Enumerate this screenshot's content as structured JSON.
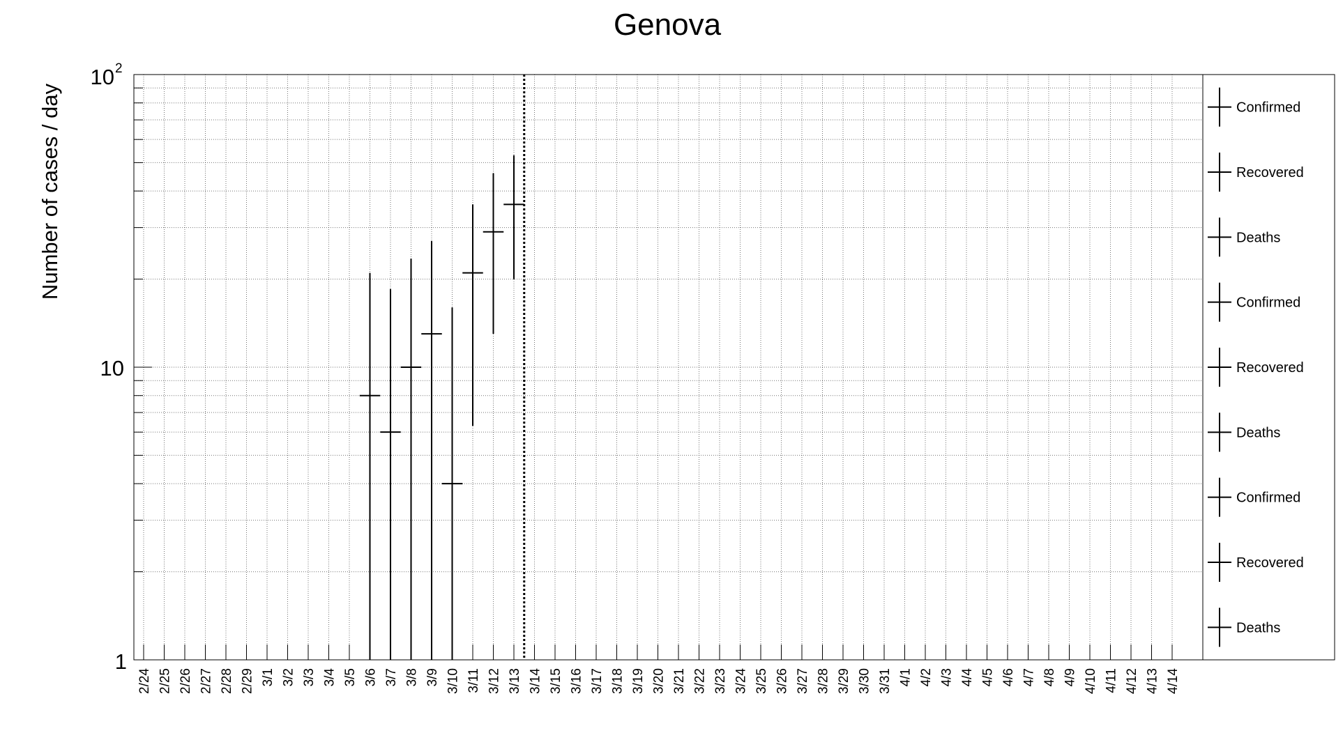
{
  "chart_data": {
    "type": "scatter",
    "title": "Genova",
    "xlabel": "",
    "ylabel": "Number of cases / day",
    "yscale": "log",
    "ylim": [
      1,
      100
    ],
    "ytick_labels": [
      "1",
      "10",
      "10^2"
    ],
    "grid": true,
    "legend_placement": "right",
    "categories": [
      "2/24",
      "2/25",
      "2/26",
      "2/27",
      "2/28",
      "2/29",
      "3/1",
      "3/2",
      "3/3",
      "3/4",
      "3/5",
      "3/6",
      "3/7",
      "3/8",
      "3/9",
      "3/10",
      "3/11",
      "3/12",
      "3/13",
      "3/14",
      "3/15",
      "3/16",
      "3/17",
      "3/18",
      "3/19",
      "3/20",
      "3/21",
      "3/22",
      "3/23",
      "3/24",
      "3/25",
      "3/26",
      "3/27",
      "3/28",
      "3/29",
      "3/30",
      "3/31",
      "4/1",
      "4/2",
      "4/3",
      "4/4",
      "4/5",
      "4/6",
      "4/7",
      "4/8",
      "4/9",
      "4/10",
      "4/11",
      "4/12",
      "4/13",
      "4/14"
    ],
    "vertical_marker_after": "3/13",
    "legend": [
      "Confirmed",
      "Recovered",
      "Deaths",
      "Confirmed",
      "Recovered",
      "Deaths",
      "Confirmed",
      "Recovered",
      "Deaths"
    ],
    "series": [
      {
        "name": "Confirmed",
        "points": [
          {
            "x": "3/6",
            "y": 8,
            "lo": 1,
            "hi": 21
          },
          {
            "x": "3/7",
            "y": 6,
            "lo": 1,
            "hi": 18.5
          },
          {
            "x": "3/8",
            "y": 10,
            "lo": 1,
            "hi": 23.5
          },
          {
            "x": "3/9",
            "y": 13,
            "lo": 1,
            "hi": 27
          },
          {
            "x": "3/10",
            "y": 4,
            "lo": 1,
            "hi": 16
          },
          {
            "x": "3/11",
            "y": 21,
            "lo": 6.3,
            "hi": 36
          },
          {
            "x": "3/12",
            "y": 29,
            "lo": 13,
            "hi": 46
          },
          {
            "x": "3/13",
            "y": 36,
            "lo": 20,
            "hi": 53
          }
        ]
      }
    ]
  }
}
